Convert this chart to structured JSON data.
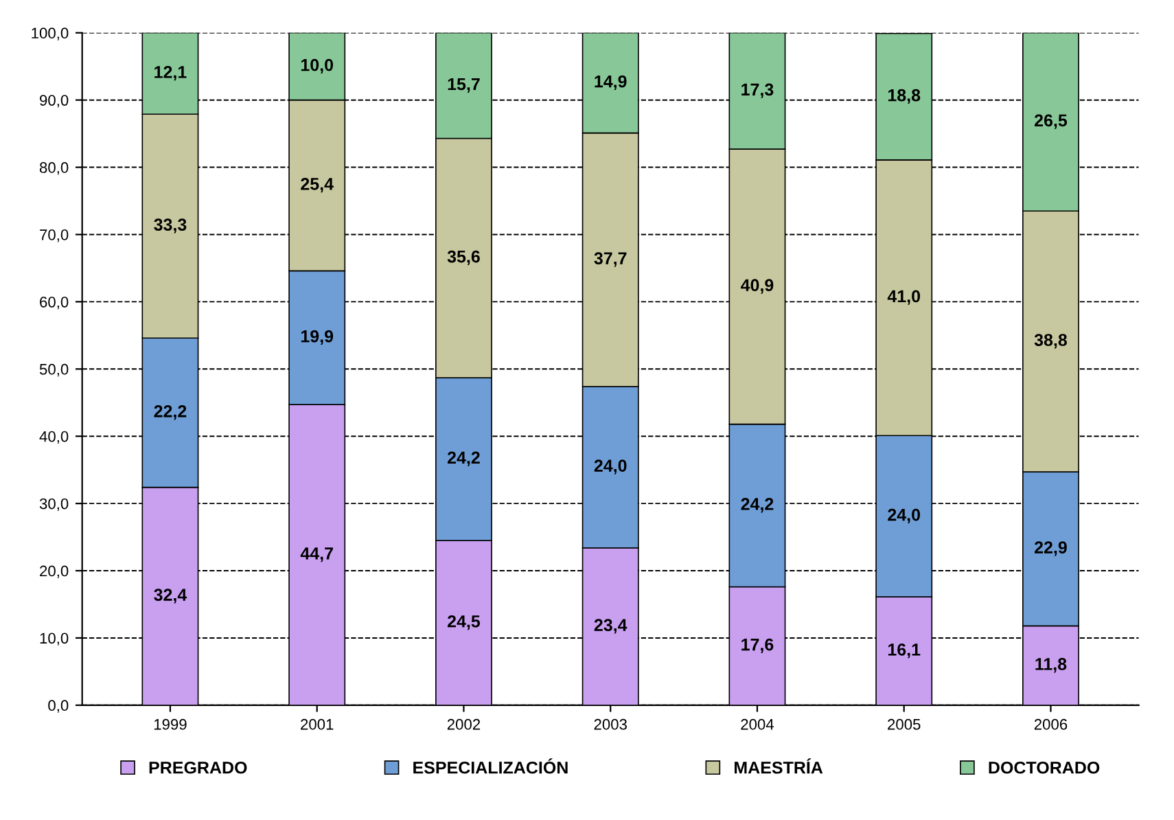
{
  "chart_data": {
    "type": "bar",
    "stacked": true,
    "categories": [
      "1999",
      "2001",
      "2002",
      "2003",
      "2004",
      "2005",
      "2006"
    ],
    "series": [
      {
        "name": "PREGRADO",
        "color": "#c9a0f0",
        "values": [
          32.4,
          44.7,
          24.5,
          23.4,
          17.6,
          16.1,
          11.8
        ],
        "value_labels": [
          "32,4",
          "44,7",
          "24,5",
          "23,4",
          "17,6",
          "16,1",
          "11,8"
        ]
      },
      {
        "name": "ESPECIALIZACIÓN",
        "color": "#6f9ed6",
        "values": [
          22.2,
          19.9,
          24.2,
          24.0,
          24.2,
          24.0,
          22.9
        ],
        "value_labels": [
          "22,2",
          "19,9",
          "24,2",
          "24,0",
          "24,2",
          "24,0",
          "22,9"
        ]
      },
      {
        "name": "MAESTRÍA",
        "color": "#c8c8a0",
        "values": [
          33.3,
          25.4,
          35.6,
          37.7,
          40.9,
          41.0,
          38.8
        ],
        "value_labels": [
          "33,3",
          "25,4",
          "35,6",
          "37,7",
          "40,9",
          "41,0",
          "38,8"
        ]
      },
      {
        "name": "DOCTORADO",
        "color": "#88c898",
        "values": [
          12.1,
          10.0,
          15.7,
          14.9,
          17.3,
          18.8,
          26.5
        ],
        "value_labels": [
          "12,1",
          "10,0",
          "15,7",
          "14,9",
          "17,3",
          "18,8",
          "26,5"
        ]
      }
    ],
    "ylim": [
      0,
      100
    ],
    "yticks": [
      {
        "value": 0,
        "label": "0,0"
      },
      {
        "value": 10,
        "label": "10,0"
      },
      {
        "value": 20,
        "label": "20,0"
      },
      {
        "value": 30,
        "label": "30,0"
      },
      {
        "value": 40,
        "label": "40,0"
      },
      {
        "value": 50,
        "label": "50,0"
      },
      {
        "value": 60,
        "label": "60,0"
      },
      {
        "value": 70,
        "label": "70,0"
      },
      {
        "value": 80,
        "label": "80,0"
      },
      {
        "value": 90,
        "label": "90,0"
      },
      {
        "value": 100,
        "label": "100,0"
      }
    ],
    "grid": "y",
    "line_style": "dashed",
    "legend": "bottom"
  }
}
